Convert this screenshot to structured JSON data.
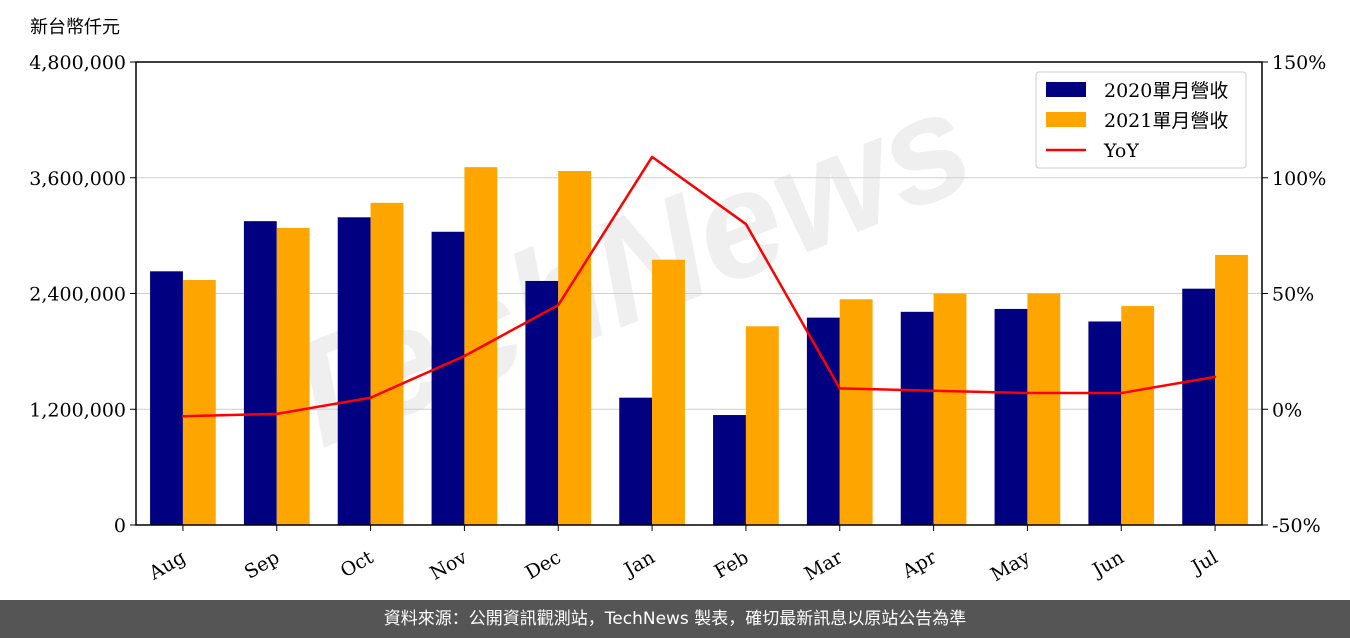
{
  "chart_data": {
    "type": "bar",
    "unit_label": "新台幣仟元",
    "categories": [
      "Aug",
      "Sep",
      "Oct",
      "Nov",
      "Dec",
      "Jan",
      "Feb",
      "Mar",
      "Apr",
      "May",
      "Jun",
      "Jul"
    ],
    "series": [
      {
        "name": "2020單月營收",
        "color": "#000080",
        "values": [
          2630000,
          3150000,
          3190000,
          3040000,
          2530000,
          1320000,
          1140000,
          2150000,
          2210000,
          2240000,
          2110000,
          2450000
        ]
      },
      {
        "name": "2021單月營收",
        "color": "#ffa500",
        "values": [
          2540000,
          3080000,
          3340000,
          3710000,
          3670000,
          2750000,
          2060000,
          2340000,
          2400000,
          2400000,
          2270000,
          2800000
        ]
      }
    ],
    "line_series": {
      "name": "YoY",
      "color": "#ff0000",
      "axis": "right",
      "values": [
        -3,
        -2,
        5,
        23,
        45,
        109,
        80,
        9,
        8,
        7,
        7,
        14
      ]
    },
    "ylim": [
      0,
      4800000
    ],
    "yticks": [
      "0",
      "1,200,000",
      "2,400,000",
      "3,600,000",
      "4,800,000"
    ],
    "y2lim": [
      -50,
      150
    ],
    "y2ticks": [
      "-50%",
      "0%",
      "50%",
      "100%",
      "150%"
    ],
    "grid": true,
    "legend_position": "top-right"
  },
  "watermark": "TechNews",
  "footer": {
    "source_text": "資料來源：公開資訊觀測站，TechNews 製表，確切最新訊息以原站公告為準"
  }
}
